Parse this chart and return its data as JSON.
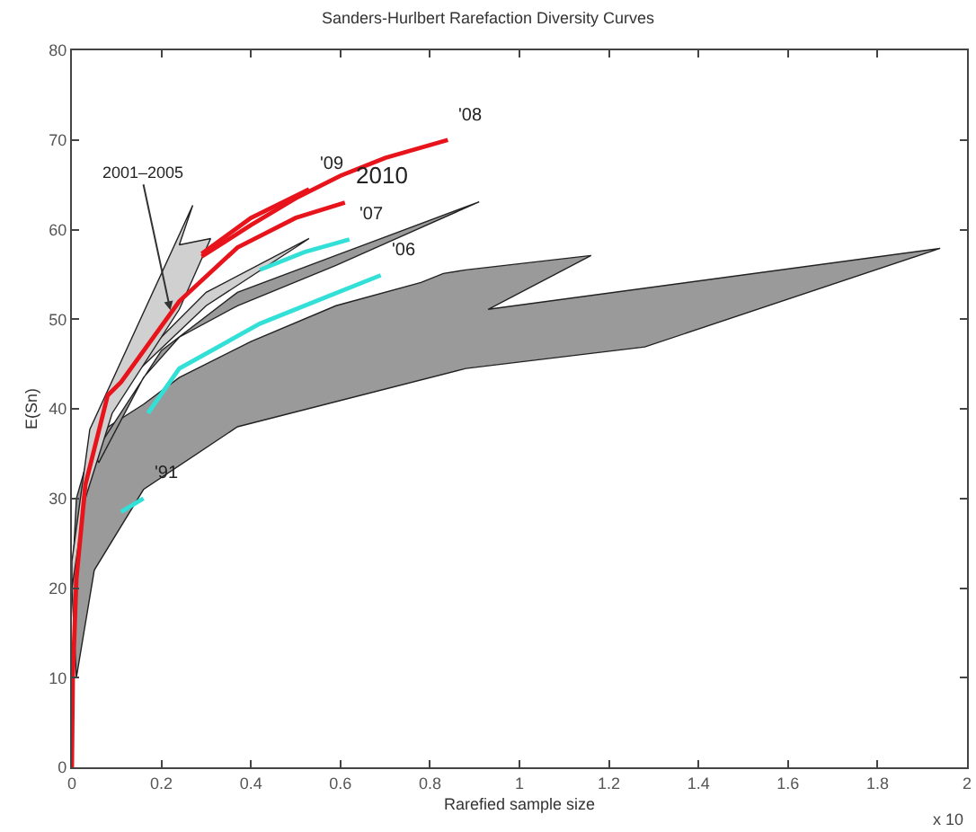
{
  "chart_data": {
    "type": "line",
    "title": "Sanders-Hurlbert Rarefaction Diversity Curves",
    "xlabel": "Rarefied sample size",
    "ylabel": "E(Sn)",
    "xlim": [
      0,
      2
    ],
    "xticks": [
      0,
      0.2,
      0.4,
      0.6,
      0.8,
      1,
      1.2,
      1.4,
      1.6,
      1.8,
      2
    ],
    "ylim": [
      0,
      80
    ],
    "yticks": [
      0,
      10,
      20,
      30,
      40,
      50,
      60,
      70,
      80
    ],
    "grid": false,
    "legend": false,
    "marker": "none",
    "line_style": "solid",
    "series": [
      {
        "type": "area",
        "color": "#9a9a9a",
        "x": [
          0,
          0.01,
          0.05,
          0.16,
          0.24,
          0.4,
          0.59,
          0.78,
          0.83,
          0.88,
          1.16,
          0.93,
          1.94,
          1.28,
          0.88,
          0.37,
          0.16,
          0.05,
          0.01,
          0
        ],
        "values": [
          20,
          30,
          37,
          40.5,
          43.5,
          47.5,
          51.5,
          54.1,
          55.1,
          55.5,
          57.1,
          51.1,
          57.9,
          46.9,
          44.5,
          38,
          31,
          22,
          10,
          20
        ]
      },
      {
        "type": "area",
        "color": "#9a9a9a",
        "x": [
          0.05,
          0.2,
          0.37,
          0.6,
          0.91,
          0.59,
          0.37,
          0.24,
          0.16,
          0.06,
          0.05
        ],
        "values": [
          35,
          46.5,
          53,
          57.3,
          63.1,
          56,
          51.5,
          48,
          43.5,
          34,
          35
        ]
      },
      {
        "type": "area",
        "color": "#d0d0d0",
        "x": [
          0.08,
          0.3,
          0.53,
          0.3,
          0.1,
          0.08
        ],
        "values": [
          42,
          53,
          59,
          51.5,
          42,
          42
        ]
      },
      {
        "type": "area",
        "color": "#d0d0d0",
        "x": [
          0,
          0.04,
          0.27,
          0.24,
          0.31,
          0.24,
          0.09,
          0.03,
          0,
          0
        ],
        "values": [
          23,
          37.7,
          62.7,
          58.3,
          59,
          51.1,
          39.5,
          30,
          20,
          23
        ]
      },
      {
        "name": "'91",
        "color": "#33e0d8",
        "x": [
          0.11,
          0.16
        ],
        "values": [
          28.5,
          30
        ]
      },
      {
        "name": "'06",
        "color": "#33e0d8",
        "x": [
          0.17,
          0.24,
          0.42,
          0.59,
          0.69
        ],
        "values": [
          39.5,
          44.5,
          49.5,
          52.9,
          54.9
        ]
      },
      {
        "name": "'07",
        "color": "#33e0d8",
        "x": [
          0.42,
          0.52,
          0.62
        ],
        "values": [
          55.5,
          57.5,
          58.9
        ]
      },
      {
        "name": "'08",
        "color": "#e8141b",
        "x": [
          0.29,
          0.4,
          0.5,
          0.6,
          0.7,
          0.84
        ],
        "values": [
          57,
          60.5,
          63.5,
          66,
          68,
          70
        ]
      },
      {
        "name": "'09",
        "color": "#e8141b",
        "x": [
          0.29,
          0.4,
          0.53
        ],
        "values": [
          57.3,
          61.3,
          64.5
        ]
      },
      {
        "name": "2010",
        "color": "#e8141b",
        "x": [
          0,
          0.002,
          0.01,
          0.03,
          0.08,
          0.11,
          0.24,
          0.37,
          0.5,
          0.61
        ],
        "values": [
          0,
          10,
          21,
          31.5,
          41.5,
          43,
          52,
          58,
          61.3,
          63
        ]
      }
    ],
    "annotations": [
      {
        "text": "2001–2005",
        "x": 0.22,
        "y": 51
      },
      "x 10"
    ]
  }
}
